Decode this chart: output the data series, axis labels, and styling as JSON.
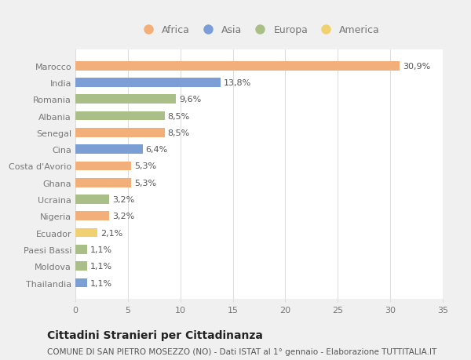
{
  "categories": [
    "Marocco",
    "India",
    "Romania",
    "Albania",
    "Senegal",
    "Cina",
    "Costa d'Avorio",
    "Ghana",
    "Ucraina",
    "Nigeria",
    "Ecuador",
    "Paesi Bassi",
    "Moldova",
    "Thailandia"
  ],
  "values": [
    30.9,
    13.8,
    9.6,
    8.5,
    8.5,
    6.4,
    5.3,
    5.3,
    3.2,
    3.2,
    2.1,
    1.1,
    1.1,
    1.1
  ],
  "labels": [
    "30,9%",
    "13,8%",
    "9,6%",
    "8,5%",
    "8,5%",
    "6,4%",
    "5,3%",
    "5,3%",
    "3,2%",
    "3,2%",
    "2,1%",
    "1,1%",
    "1,1%",
    "1,1%"
  ],
  "continents": [
    "Africa",
    "Asia",
    "Europa",
    "Europa",
    "Africa",
    "Asia",
    "Africa",
    "Africa",
    "Europa",
    "Africa",
    "America",
    "Europa",
    "Europa",
    "Asia"
  ],
  "colors": {
    "Africa": "#F2AF7A",
    "Asia": "#7B9FD4",
    "Europa": "#AABF88",
    "America": "#F0D070"
  },
  "legend_order": [
    "Africa",
    "Asia",
    "Europa",
    "America"
  ],
  "xlim": [
    0,
    35
  ],
  "xticks": [
    0,
    5,
    10,
    15,
    20,
    25,
    30,
    35
  ],
  "title": "Cittadini Stranieri per Cittadinanza",
  "subtitle": "COMUNE DI SAN PIETRO MOSEZZO (NO) - Dati ISTAT al 1° gennaio - Elaborazione TUTTITALIA.IT",
  "fig_bg_color": "#f0f0f0",
  "plot_bg_color": "#ffffff",
  "grid_color": "#dddddd",
  "label_color": "#555555",
  "tick_color": "#777777",
  "title_color": "#222222",
  "subtitle_color": "#555555",
  "label_fontsize": 8,
  "tick_fontsize": 8,
  "ytick_fontsize": 8,
  "title_fontsize": 10,
  "subtitle_fontsize": 7.5,
  "bar_height": 0.55
}
